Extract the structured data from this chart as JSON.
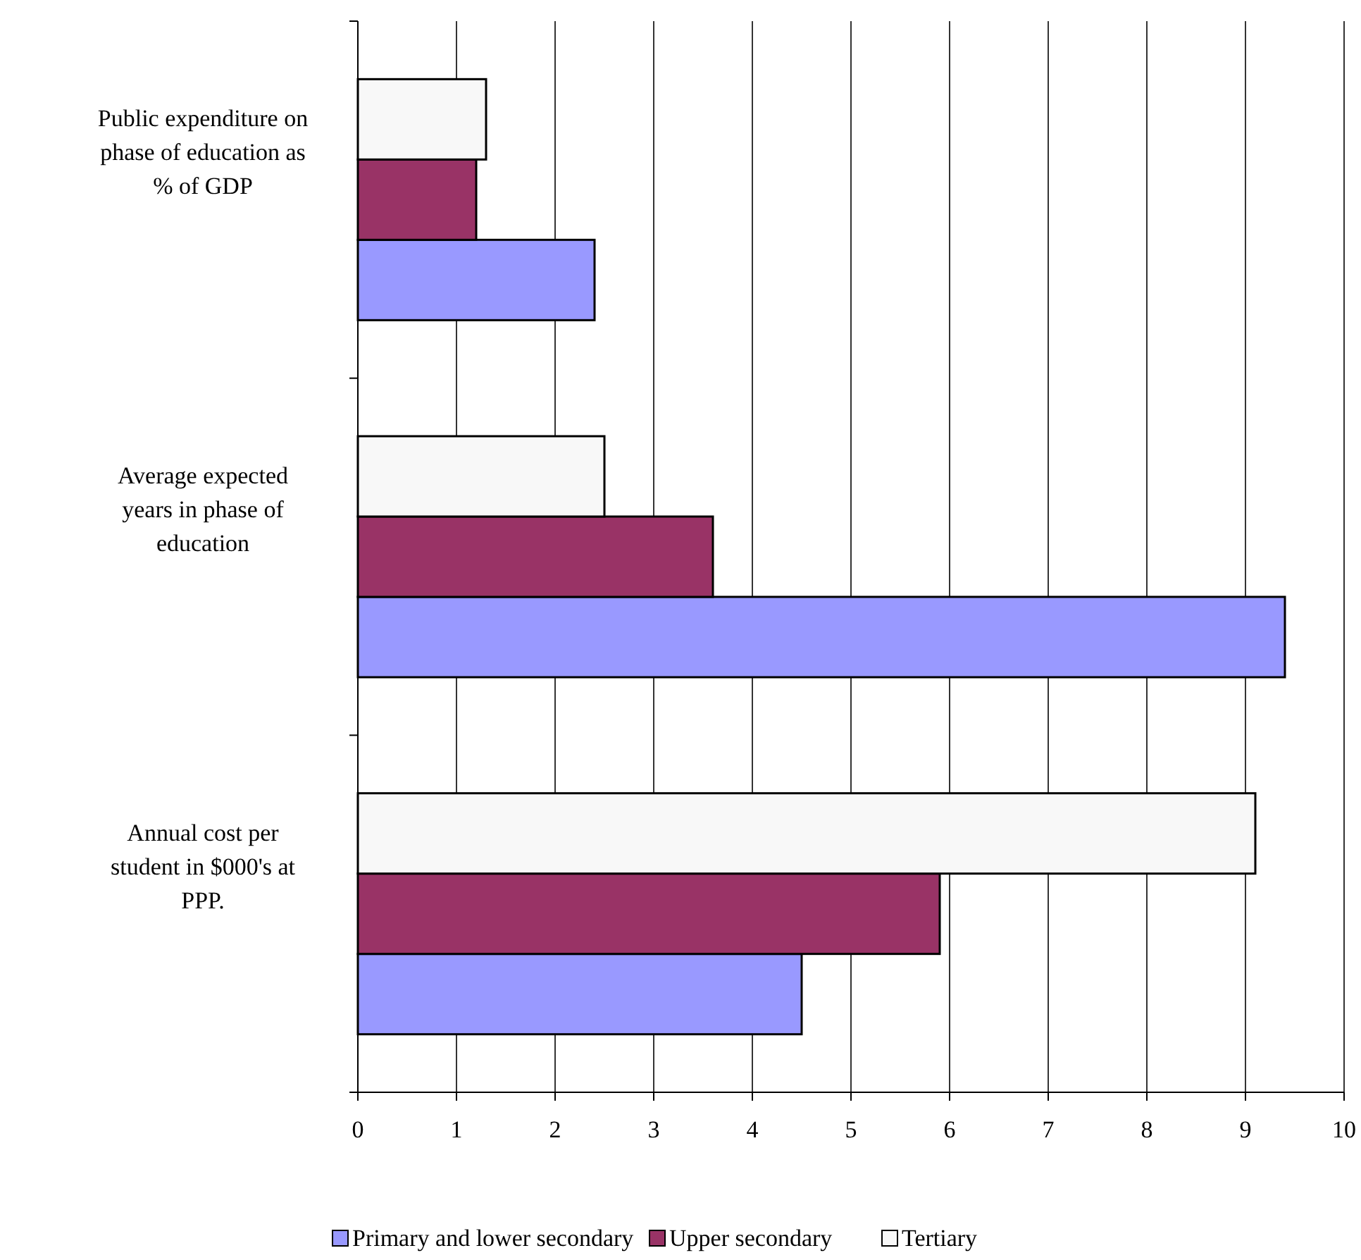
{
  "chart_data": {
    "type": "bar",
    "orientation": "horizontal",
    "categories": [
      "Public expenditure on phase of education as % of GDP",
      "Average expected years in phase of education",
      "Annual cost per student in $000's at PPP."
    ],
    "series": [
      {
        "name": "Primary and lower secondary",
        "color": "#9999ff",
        "values": [
          2.4,
          9.4,
          4.5
        ]
      },
      {
        "name": "Upper secondary",
        "color": "#993366",
        "values": [
          1.2,
          3.6,
          5.9
        ]
      },
      {
        "name": "Tertiary",
        "color": "#f8f8f8",
        "values": [
          1.3,
          2.5,
          9.1
        ]
      }
    ],
    "xlim": [
      0,
      10
    ],
    "xticks": [
      0,
      1,
      2,
      3,
      4,
      5,
      6,
      7,
      8,
      9,
      10
    ],
    "grid": "x",
    "legend": "bottom"
  }
}
